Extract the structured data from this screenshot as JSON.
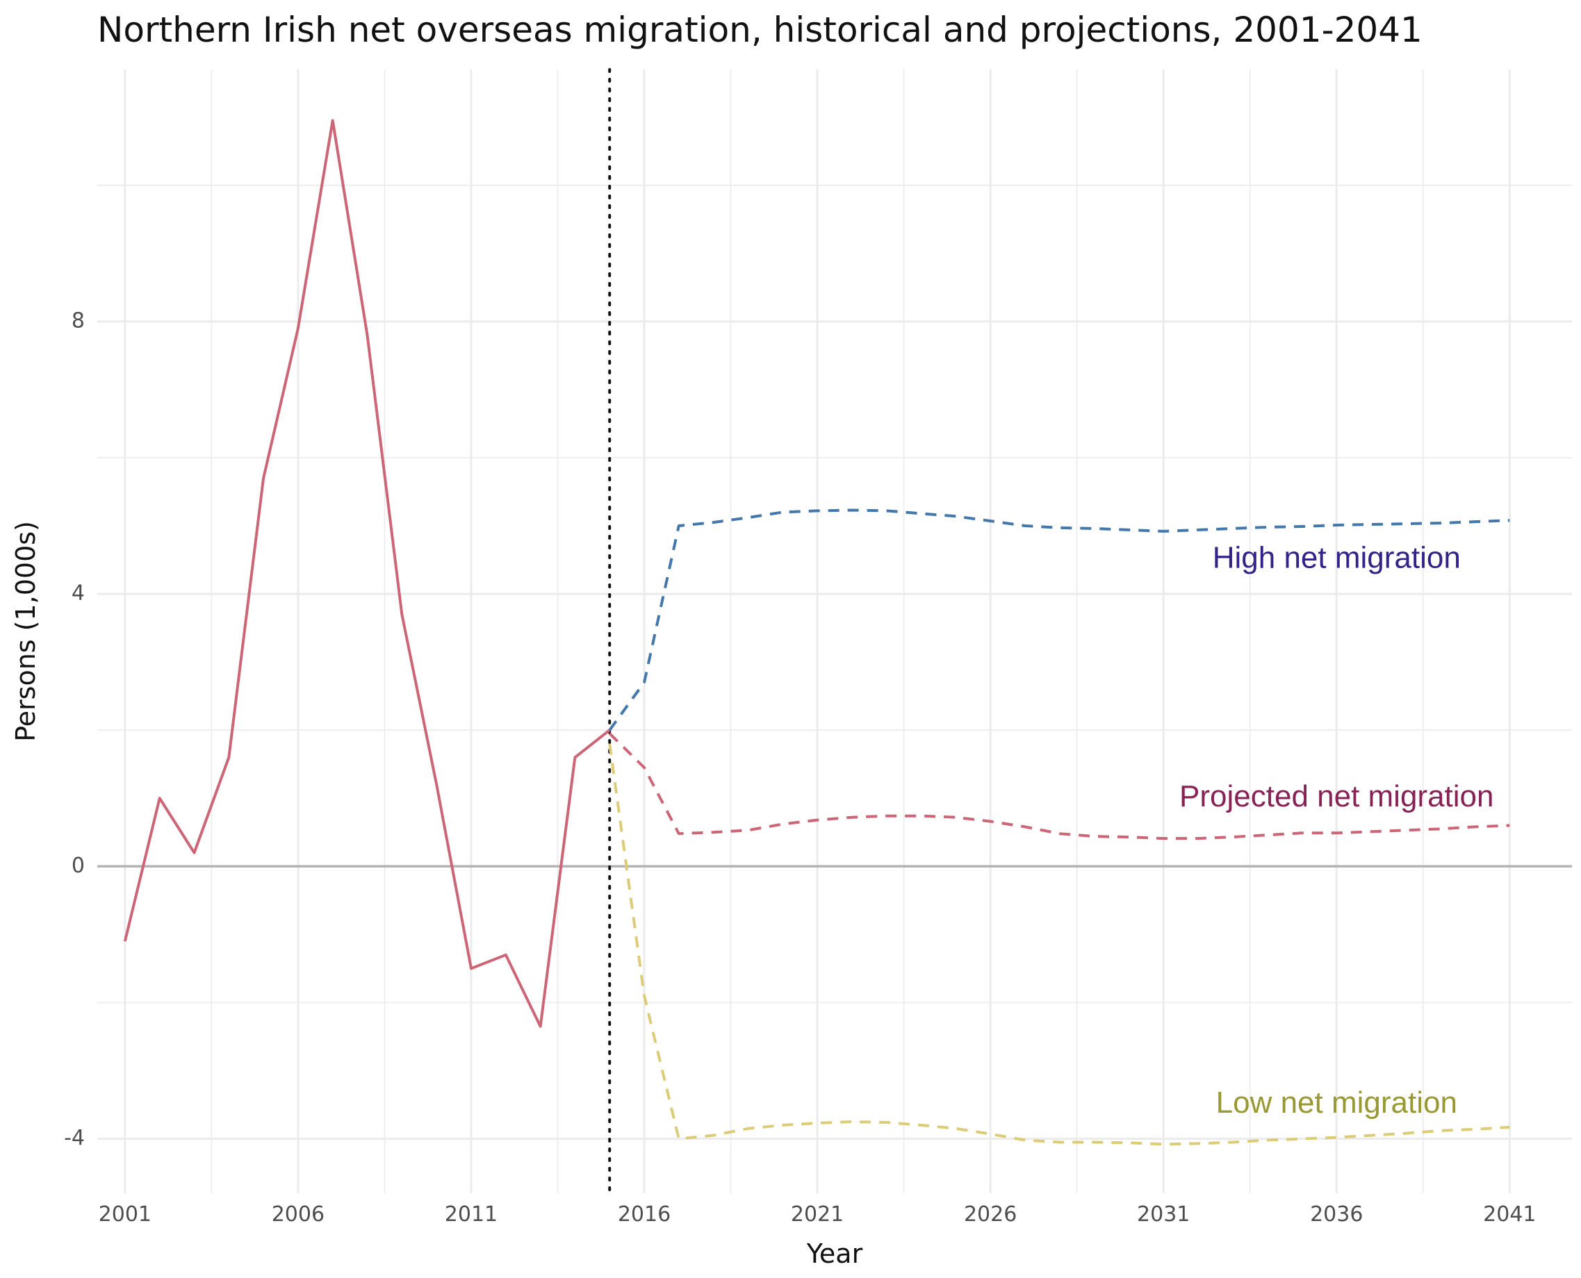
{
  "chart_data": {
    "type": "line",
    "title": "Northern Irish net overseas migration, historical and projections, 2001-2041",
    "xlabel": "Year",
    "ylabel": "Persons (1,000s)",
    "xlim": [
      2000.2,
      2042.8
    ],
    "ylim": [
      -4.8,
      11.7
    ],
    "x_ticks": [
      2001,
      2006,
      2011,
      2016,
      2021,
      2026,
      2031,
      2036,
      2041
    ],
    "y_ticks": [
      -4,
      0,
      4,
      8
    ],
    "grid": true,
    "reference_lines": {
      "zero_line_y": 0,
      "base_year_x": 2015
    },
    "series": [
      {
        "key": "historical",
        "color": "#cc6677",
        "dash": "solid",
        "x": [
          2001,
          2002,
          2003,
          2004,
          2005,
          2006,
          2007,
          2008,
          2009,
          2010,
          2011,
          2012,
          2013,
          2014,
          2015
        ],
        "values": [
          -1.1,
          1.0,
          0.2,
          1.6,
          5.7,
          7.9,
          10.95,
          7.8,
          3.7,
          1.2,
          -1.5,
          -1.3,
          -2.35,
          1.6,
          2.0
        ]
      },
      {
        "key": "high",
        "color": "#4477aa",
        "dash": "dashed",
        "x": [
          2015,
          2016,
          2017,
          2018,
          2019,
          2020,
          2021,
          2022,
          2023,
          2024,
          2025,
          2026,
          2027,
          2028,
          2029,
          2030,
          2031,
          2032,
          2033,
          2034,
          2035,
          2036,
          2037,
          2038,
          2039,
          2040,
          2041
        ],
        "values": [
          2.0,
          2.7,
          5.0,
          5.05,
          5.12,
          5.2,
          5.22,
          5.23,
          5.22,
          5.18,
          5.14,
          5.07,
          5.0,
          4.97,
          4.96,
          4.94,
          4.92,
          4.94,
          4.96,
          4.98,
          4.99,
          5.01,
          5.02,
          5.03,
          5.04,
          5.06,
          5.08
        ]
      },
      {
        "key": "projected",
        "color": "#cc6677",
        "dash": "dashed",
        "x": [
          2015,
          2016,
          2017,
          2018,
          2019,
          2020,
          2021,
          2022,
          2023,
          2024,
          2025,
          2026,
          2027,
          2028,
          2029,
          2030,
          2031,
          2032,
          2033,
          2034,
          2035,
          2036,
          2037,
          2038,
          2039,
          2040,
          2041
        ],
        "values": [
          1.95,
          1.45,
          0.48,
          0.5,
          0.53,
          0.62,
          0.68,
          0.72,
          0.74,
          0.74,
          0.72,
          0.66,
          0.58,
          0.48,
          0.44,
          0.43,
          0.41,
          0.41,
          0.43,
          0.46,
          0.49,
          0.49,
          0.51,
          0.53,
          0.55,
          0.58,
          0.6
        ]
      },
      {
        "key": "low",
        "color": "#ddcc77",
        "dash": "dashed",
        "x": [
          2015,
          2016,
          2017,
          2018,
          2019,
          2020,
          2021,
          2022,
          2023,
          2024,
          2025,
          2026,
          2027,
          2028,
          2029,
          2030,
          2031,
          2032,
          2033,
          2034,
          2035,
          2036,
          2037,
          2038,
          2039,
          2040,
          2041
        ],
        "values": [
          1.8,
          -1.9,
          -4.0,
          -3.95,
          -3.85,
          -3.8,
          -3.77,
          -3.75,
          -3.76,
          -3.8,
          -3.85,
          -3.93,
          -4.02,
          -4.05,
          -4.05,
          -4.06,
          -4.08,
          -4.07,
          -4.05,
          -4.02,
          -4.0,
          -3.98,
          -3.95,
          -3.92,
          -3.88,
          -3.86,
          -3.83
        ]
      }
    ],
    "annotations": [
      {
        "text": "High net migration",
        "x": 2036,
        "y": 4.5,
        "color": "#332288"
      },
      {
        "text": "Projected net migration",
        "x": 2036,
        "y": 1.0,
        "color": "#882255"
      },
      {
        "text": "Low net migration",
        "x": 2036,
        "y": -3.5,
        "color": "#999933"
      }
    ],
    "colors": {
      "grid": "#ebebeb",
      "zero_line": "#b3b3b3",
      "base_year_line": "#111111"
    }
  }
}
